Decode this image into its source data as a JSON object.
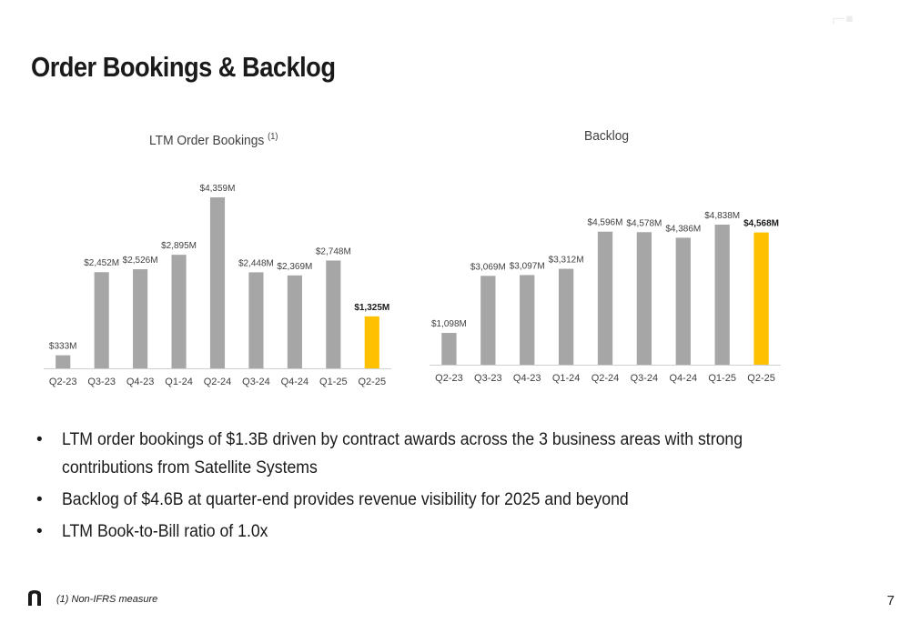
{
  "page": {
    "title": "Order Bookings & Backlog",
    "page_number": "7",
    "footnote": "(1) Non-IFRS measure",
    "bullets": [
      "LTM order bookings of $1.3B driven by contract awards across the 3 business areas with strong contributions from Satellite Systems",
      "Backlog of $4.6B at quarter-end provides revenue visibility for 2025 and beyond",
      "LTM Book-to-Bill ratio of 1.0x"
    ],
    "bullet_glyph": "•"
  },
  "colors": {
    "bar_default": "#a6a6a6",
    "bar_highlight": "#ffc000",
    "axis_line": "#d0d0d0",
    "label_text": "#404040"
  },
  "chart_data": [
    {
      "type": "bar",
      "title": "LTM Order Bookings",
      "title_superscript": "(1)",
      "categories": [
        "Q2-23",
        "Q3-23",
        "Q4-23",
        "Q1-24",
        "Q2-24",
        "Q3-24",
        "Q4-24",
        "Q1-25",
        "Q2-25"
      ],
      "values": [
        333,
        2452,
        2526,
        2895,
        4359,
        2448,
        2369,
        2748,
        1325
      ],
      "data_labels": [
        "$333M",
        "$2,452M",
        "$2,526M",
        "$2,895M",
        "$4,359M",
        "$2,448M",
        "$2,369M",
        "$2,748M",
        "$1,325M"
      ],
      "unit": "$M",
      "highlight_index": 8,
      "ylim": [
        0,
        4359
      ],
      "grid": false,
      "legend": "none"
    },
    {
      "type": "bar",
      "title": "Backlog",
      "categories": [
        "Q2-23",
        "Q3-23",
        "Q4-23",
        "Q1-24",
        "Q2-24",
        "Q3-24",
        "Q4-24",
        "Q1-25",
        "Q2-25"
      ],
      "values": [
        1098,
        3069,
        3097,
        3312,
        4596,
        4578,
        4386,
        4838,
        4568
      ],
      "data_labels": [
        "$1,098M",
        "$3,069M",
        "$3,097M",
        "$3,312M",
        "$4,596M",
        "$4,578M",
        "$4,386M",
        "$4,838M",
        "$4,568M"
      ],
      "unit": "$M",
      "highlight_index": 8,
      "ylim": [
        0,
        4838
      ],
      "grid": false,
      "legend": "none"
    }
  ]
}
